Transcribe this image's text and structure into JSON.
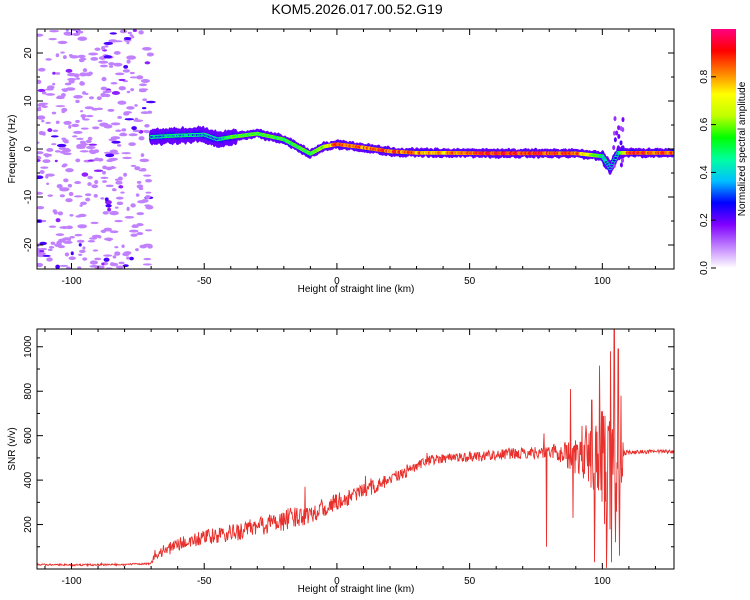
{
  "title": "KOM5.2026.017.00.52.G19",
  "chart_data": [
    {
      "type": "heatmap",
      "name": "spectrogram",
      "xlabel": "Height of straight line (km)",
      "ylabel": "Frequency (Hz)",
      "xlim": [
        -113,
        127
      ],
      "ylim": [
        -25,
        25
      ],
      "xticks": [
        -100,
        -50,
        0,
        50,
        100
      ],
      "yticks": [
        -20,
        -10,
        0,
        10,
        20
      ],
      "colorbar": {
        "label": "Normalized spectral amplitude",
        "range": [
          0,
          1
        ],
        "ticks": [
          0.0,
          0.2,
          0.4,
          0.6,
          0.8
        ],
        "tick_labels": [
          "0.0",
          "0.2",
          "0.4",
          "0.6",
          "0.8"
        ],
        "colormap": [
          "#ffffff",
          "#c080ff",
          "#8000ff",
          "#0000ff",
          "#00c0ff",
          "#00ffa0",
          "#00ff00",
          "#c0ff00",
          "#ffff00",
          "#ff8000",
          "#ff0000",
          "#ff0080"
        ]
      },
      "noise_region": {
        "x": [
          -113,
          -70
        ],
        "amplitude": [
          0.05,
          0.2
        ]
      },
      "ridge": {
        "x": [
          -70,
          -60,
          -50,
          -45,
          -40,
          -30,
          -20,
          -10,
          -5,
          0,
          10,
          20,
          30,
          40,
          55,
          70,
          80,
          90,
          100,
          103,
          106,
          110,
          127
        ],
        "frequency": [
          2.5,
          2.8,
          3.0,
          2.0,
          2.5,
          3.2,
          2.0,
          -1.0,
          0.5,
          1.0,
          0.3,
          -0.5,
          -0.8,
          -0.8,
          -0.9,
          -0.9,
          -0.9,
          -0.9,
          -1.5,
          -4.0,
          -0.8,
          -0.8,
          -0.8
        ],
        "amplitude": [
          0.3,
          0.35,
          0.3,
          0.25,
          0.5,
          0.5,
          0.45,
          0.5,
          0.6,
          0.95,
          0.85,
          0.9,
          0.85,
          0.8,
          0.95,
          0.95,
          0.95,
          0.9,
          0.4,
          0.2,
          0.35,
          0.9,
          0.9
        ]
      }
    },
    {
      "type": "line",
      "name": "snr",
      "color": "#e8302c",
      "xlabel": "Height of straight line (km)",
      "ylabel": "SNR (v/v)",
      "xlim": [
        -113,
        127
      ],
      "ylim": [
        0,
        1080
      ],
      "xticks": [
        -100,
        -50,
        0,
        50,
        100
      ],
      "yticks": [
        200,
        400,
        600,
        800,
        1000
      ],
      "series": [
        {
          "name": "SNR",
          "x": [
            -113,
            -100,
            -80,
            -70,
            -69,
            -60,
            -50,
            -40,
            -30,
            -20,
            -10,
            0,
            10,
            20,
            30,
            35,
            40,
            50,
            60,
            70,
            80,
            85,
            90,
            95,
            98,
            100,
            102,
            104,
            106,
            107,
            108,
            110,
            120,
            127
          ],
          "y": [
            20,
            18,
            20,
            25,
            60,
            110,
            140,
            160,
            190,
            220,
            250,
            300,
            350,
            400,
            460,
            490,
            500,
            505,
            515,
            520,
            530,
            520,
            500,
            520,
            450,
            500,
            420,
            500,
            400,
            480,
            520,
            525,
            528,
            530
          ],
          "noise": [
            4,
            4,
            4,
            4,
            25,
            30,
            35,
            40,
            45,
            50,
            45,
            40,
            35,
            30,
            25,
            22,
            22,
            22,
            25,
            25,
            30,
            50,
            80,
            150,
            220,
            250,
            300,
            350,
            320,
            250,
            15,
            10,
            8,
            8
          ]
        }
      ],
      "spikes": [
        {
          "x": -28,
          "y": 230
        },
        {
          "x": -12,
          "y": 370
        },
        {
          "x": 78,
          "y": 610
        },
        {
          "x": 79,
          "y": 100
        },
        {
          "x": 88,
          "y": 810
        },
        {
          "x": 89,
          "y": 230
        },
        {
          "x": 96,
          "y": 760
        },
        {
          "x": 97,
          "y": 30
        },
        {
          "x": 101,
          "y": 690
        },
        {
          "x": 101.5,
          "y": 5
        },
        {
          "x": 103,
          "y": 980
        },
        {
          "x": 103.5,
          "y": 30
        },
        {
          "x": 104.5,
          "y": 1080
        },
        {
          "x": 105,
          "y": 120
        },
        {
          "x": 106,
          "y": 990
        },
        {
          "x": 106.5,
          "y": 60
        },
        {
          "x": 107,
          "y": 780
        }
      ]
    }
  ]
}
